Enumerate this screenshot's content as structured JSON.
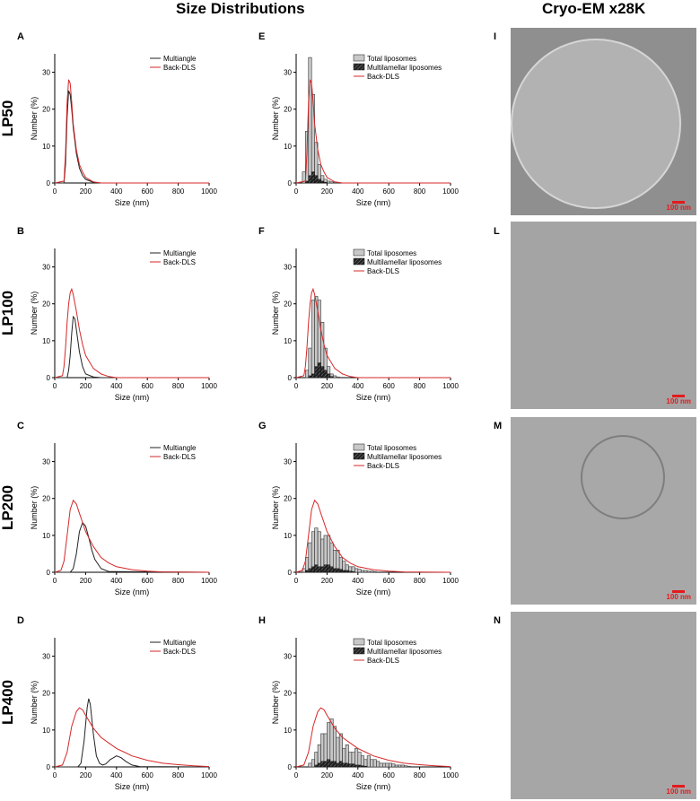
{
  "headers": {
    "left": "Size Distributions",
    "right": "Cryo-EM x28K"
  },
  "colors": {
    "multiangle": "#222222",
    "backdls": "#d62728",
    "bar_total": "#c8c8c8",
    "bar_multi": "#333333"
  },
  "rows": [
    {
      "label": "LP50",
      "dist_letter": "A",
      "hist_letter": "E",
      "em_letter": "I",
      "em_scale": "100 nm"
    },
    {
      "label": "LP100",
      "dist_letter": "B",
      "hist_letter": "F",
      "em_letter": "L",
      "em_scale": "100 nm"
    },
    {
      "label": "LP200",
      "dist_letter": "C",
      "hist_letter": "G",
      "em_letter": "M",
      "em_scale": "100 nm"
    },
    {
      "label": "LP400",
      "dist_letter": "D",
      "hist_letter": "H",
      "em_letter": "N",
      "em_scale": "100 nm"
    }
  ],
  "chart_data": [
    {
      "panel": "A",
      "type": "line",
      "xlabel": "Size (nm)",
      "ylabel": "Number (%)",
      "xlim": [
        0,
        1000
      ],
      "ylim": [
        0,
        35
      ],
      "xticks": [
        0,
        200,
        400,
        600,
        800,
        1000
      ],
      "yticks": [
        0,
        10,
        20,
        30
      ],
      "legend": "top-right",
      "series": [
        {
          "name": "Multiangle",
          "x": [
            0,
            60,
            70,
            80,
            90,
            100,
            110,
            120,
            140,
            160,
            180,
            200,
            250,
            300,
            1000
          ],
          "y": [
            0,
            0,
            5,
            18,
            25,
            24,
            20,
            15,
            8,
            4,
            2,
            1,
            0.2,
            0,
            0
          ]
        },
        {
          "name": "Back-DLS",
          "x": [
            0,
            60,
            70,
            80,
            90,
            100,
            110,
            120,
            140,
            160,
            180,
            200,
            250,
            300,
            1000
          ],
          "y": [
            0,
            0.5,
            8,
            22,
            28,
            27,
            22,
            16,
            9,
            5,
            3,
            1.5,
            0.3,
            0,
            0
          ]
        }
      ]
    },
    {
      "panel": "E",
      "type": "bar",
      "xlabel": "Size (nm)",
      "ylabel": "Number (%)",
      "xlim": [
        0,
        1000
      ],
      "ylim": [
        0,
        35
      ],
      "xticks": [
        0,
        200,
        400,
        600,
        800,
        1000
      ],
      "yticks": [
        0,
        10,
        20,
        30
      ],
      "legend": "top-right",
      "bin_width": 20,
      "series": [
        {
          "name": "Total liposomes",
          "x": [
            50,
            70,
            90,
            110,
            130,
            150,
            170,
            190,
            210,
            230,
            250,
            270
          ],
          "values": [
            3,
            14,
            34,
            24,
            11,
            5,
            2,
            1,
            0.5,
            0.3,
            0.2,
            0.1
          ]
        },
        {
          "name": "Multilamellar liposomes",
          "x": [
            50,
            70,
            90,
            110,
            130,
            150,
            170,
            190
          ],
          "values": [
            0,
            0.5,
            2,
            3,
            2,
            1,
            0.5,
            0.2
          ]
        }
      ],
      "fit": {
        "name": "Back-DLS",
        "x": [
          0,
          60,
          70,
          80,
          90,
          100,
          110,
          120,
          140,
          160,
          180,
          200,
          250,
          300,
          1000
        ],
        "y": [
          0,
          0.5,
          8,
          22,
          28,
          27,
          22,
          16,
          9,
          5,
          3,
          1.5,
          0.3,
          0,
          0
        ]
      }
    },
    {
      "panel": "B",
      "type": "line",
      "xlabel": "Size (nm)",
      "ylabel": "Number (%)",
      "xlim": [
        0,
        1000
      ],
      "ylim": [
        0,
        35
      ],
      "xticks": [
        0,
        200,
        400,
        600,
        800,
        1000
      ],
      "yticks": [
        0,
        10,
        20,
        30
      ],
      "legend": "top-right",
      "series": [
        {
          "name": "Multiangle",
          "x": [
            0,
            80,
            90,
            100,
            110,
            120,
            130,
            140,
            160,
            180,
            200,
            250,
            300,
            1000
          ],
          "y": [
            0,
            0,
            2,
            6,
            12,
            16.5,
            16,
            13,
            7,
            3,
            1,
            0.2,
            0,
            0
          ]
        },
        {
          "name": "Back-DLS",
          "x": [
            0,
            50,
            60,
            70,
            80,
            90,
            100,
            110,
            120,
            140,
            160,
            180,
            200,
            250,
            300,
            350,
            400,
            1000
          ],
          "y": [
            0,
            0.5,
            3,
            8,
            15,
            20,
            23,
            24,
            22.5,
            18,
            13,
            9,
            6,
            2.5,
            1,
            0.3,
            0,
            0
          ]
        }
      ]
    },
    {
      "panel": "F",
      "type": "bar",
      "xlabel": "Size (nm)",
      "ylabel": "Number (%)",
      "xlim": [
        0,
        1000
      ],
      "ylim": [
        0,
        35
      ],
      "xticks": [
        0,
        200,
        400,
        600,
        800,
        1000
      ],
      "yticks": [
        0,
        10,
        20,
        30
      ],
      "legend": "top-right",
      "bin_width": 20,
      "series": [
        {
          "name": "Total liposomes",
          "x": [
            70,
            90,
            110,
            130,
            150,
            170,
            190,
            210,
            230,
            250,
            270
          ],
          "values": [
            2,
            8,
            21,
            22,
            21,
            15,
            8,
            3,
            1,
            0.5,
            0.2
          ]
        },
        {
          "name": "Multilamellar liposomes",
          "x": [
            90,
            110,
            130,
            150,
            170,
            190,
            210,
            230
          ],
          "values": [
            0.5,
            1,
            3,
            4,
            3,
            2,
            1,
            0.3
          ]
        }
      ],
      "fit": {
        "name": "Back-DLS",
        "x": [
          0,
          50,
          60,
          70,
          80,
          90,
          100,
          110,
          120,
          140,
          160,
          180,
          200,
          250,
          300,
          350,
          400,
          1000
        ],
        "y": [
          0,
          0.5,
          3,
          8,
          15,
          20,
          23,
          24,
          22.5,
          18,
          13,
          9,
          6,
          2.5,
          1,
          0.3,
          0,
          0
        ]
      }
    },
    {
      "panel": "C",
      "type": "line",
      "xlabel": "Size (nm)",
      "ylabel": "Number (%)",
      "xlim": [
        0,
        1000
      ],
      "ylim": [
        0,
        35
      ],
      "xticks": [
        0,
        200,
        400,
        600,
        800,
        1000
      ],
      "yticks": [
        0,
        10,
        20,
        30
      ],
      "legend": "top-right",
      "series": [
        {
          "name": "Multiangle",
          "x": [
            0,
            100,
            120,
            140,
            160,
            180,
            200,
            220,
            240,
            260,
            300,
            350,
            1000
          ],
          "y": [
            0,
            0,
            1,
            5,
            11,
            13.5,
            12.5,
            9.5,
            6,
            3.5,
            1,
            0.2,
            0
          ]
        },
        {
          "name": "Back-DLS",
          "x": [
            0,
            40,
            60,
            80,
            100,
            120,
            140,
            160,
            180,
            200,
            250,
            300,
            350,
            400,
            500,
            600,
            700,
            1000
          ],
          "y": [
            0,
            0.5,
            3,
            10,
            17,
            19.5,
            18.5,
            16,
            13.5,
            11,
            7,
            4,
            2.5,
            1.5,
            0.7,
            0.3,
            0.1,
            0
          ]
        }
      ]
    },
    {
      "panel": "G",
      "type": "bar",
      "xlabel": "Size (nm)",
      "ylabel": "Number (%)",
      "xlim": [
        0,
        1000
      ],
      "ylim": [
        0,
        35
      ],
      "xticks": [
        0,
        200,
        400,
        600,
        800,
        1000
      ],
      "yticks": [
        0,
        10,
        20,
        30
      ],
      "legend": "top-right",
      "bin_width": 20,
      "series": [
        {
          "name": "Total liposomes",
          "x": [
            50,
            70,
            90,
            110,
            130,
            150,
            170,
            190,
            210,
            230,
            250,
            270,
            290,
            310,
            330,
            350,
            370,
            390,
            410,
            430,
            450,
            470,
            490,
            510
          ],
          "values": [
            1,
            4,
            8,
            11,
            12,
            11,
            9,
            10,
            10,
            8,
            6,
            6,
            4,
            3,
            2,
            1.5,
            1.5,
            1,
            0.8,
            0.5,
            0.5,
            0.3,
            0.3,
            0.2
          ]
        },
        {
          "name": "Multilamellar liposomes",
          "x": [
            70,
            90,
            110,
            130,
            150,
            170,
            190,
            210,
            230,
            250,
            270,
            290,
            310,
            330,
            350,
            370
          ],
          "values": [
            0.5,
            1,
            1.5,
            2,
            1.5,
            1.5,
            2,
            2,
            1.5,
            1,
            1,
            0.8,
            0.5,
            0.5,
            0.3,
            0.2
          ]
        }
      ],
      "fit": {
        "name": "Back-DLS",
        "x": [
          0,
          40,
          60,
          80,
          100,
          120,
          140,
          160,
          180,
          200,
          250,
          300,
          350,
          400,
          500,
          600,
          700,
          1000
        ],
        "y": [
          0,
          0.5,
          3,
          10,
          17,
          19.5,
          18.5,
          16,
          13.5,
          11,
          7,
          4,
          2.5,
          1.5,
          0.7,
          0.3,
          0.1,
          0
        ]
      }
    },
    {
      "panel": "D",
      "type": "line",
      "xlabel": "Size (nm)",
      "ylabel": "Number (%)",
      "xlim": [
        0,
        1000
      ],
      "ylim": [
        0,
        35
      ],
      "xticks": [
        0,
        200,
        400,
        600,
        800,
        1000
      ],
      "yticks": [
        0,
        10,
        20,
        30
      ],
      "legend": "top-right",
      "series": [
        {
          "name": "Multiangle",
          "x": [
            0,
            150,
            170,
            190,
            210,
            220,
            230,
            250,
            270,
            290,
            310,
            330,
            360,
            400,
            430,
            460,
            500,
            550,
            1000
          ],
          "y": [
            0,
            0,
            1,
            7,
            16,
            18.5,
            17,
            9,
            3,
            1,
            0.5,
            0.8,
            2,
            3,
            2.5,
            1.5,
            0.5,
            0.1,
            0
          ]
        },
        {
          "name": "Back-DLS",
          "x": [
            0,
            50,
            80,
            110,
            140,
            160,
            180,
            200,
            250,
            300,
            350,
            400,
            450,
            500,
            600,
            700,
            800,
            900,
            1000
          ],
          "y": [
            0,
            0.5,
            4,
            11,
            15,
            16,
            15.5,
            14,
            10.5,
            8,
            6.5,
            5,
            4,
            3,
            1.8,
            1,
            0.6,
            0.3,
            0.1
          ]
        }
      ]
    },
    {
      "panel": "H",
      "type": "bar",
      "xlabel": "Size (nm)",
      "ylabel": "Number (%)",
      "xlim": [
        0,
        1000
      ],
      "ylim": [
        0,
        35
      ],
      "xticks": [
        0,
        200,
        400,
        600,
        800,
        1000
      ],
      "yticks": [
        0,
        10,
        20,
        30
      ],
      "legend": "top-right",
      "bin_width": 20,
      "series": [
        {
          "name": "Total liposomes",
          "x": [
            90,
            110,
            130,
            150,
            170,
            190,
            210,
            230,
            250,
            270,
            290,
            310,
            330,
            350,
            370,
            390,
            410,
            430,
            450,
            470,
            490,
            510,
            530,
            550,
            570,
            590,
            610,
            630,
            650,
            670,
            690,
            710,
            730
          ],
          "values": [
            1,
            2,
            4,
            6,
            9,
            9,
            12,
            13,
            11,
            8,
            9,
            5,
            6,
            4,
            4,
            5,
            4,
            3,
            2,
            3,
            2,
            2,
            1.5,
            1,
            1,
            1,
            1,
            0.8,
            0.5,
            0.5,
            0.5,
            0.3,
            0.2
          ]
        },
        {
          "name": "Multilamellar liposomes",
          "x": [
            130,
            150,
            170,
            190,
            210,
            230,
            250,
            270,
            290,
            310,
            330,
            350,
            370,
            390,
            410,
            430,
            450
          ],
          "values": [
            0.5,
            1,
            1.5,
            1.5,
            2,
            1.5,
            1.5,
            1,
            1.5,
            1,
            1,
            0.8,
            0.8,
            0.5,
            0.5,
            0.3,
            0.2
          ]
        }
      ],
      "fit": {
        "name": "Back-DLS",
        "x": [
          0,
          50,
          80,
          110,
          140,
          160,
          180,
          200,
          250,
          300,
          350,
          400,
          450,
          500,
          600,
          700,
          800,
          900,
          1000
        ],
        "y": [
          0,
          0.5,
          4,
          11,
          15,
          16,
          15.5,
          14,
          10.5,
          8,
          6.5,
          5,
          4,
          3,
          1.8,
          1,
          0.6,
          0.3,
          0.1
        ]
      }
    }
  ]
}
